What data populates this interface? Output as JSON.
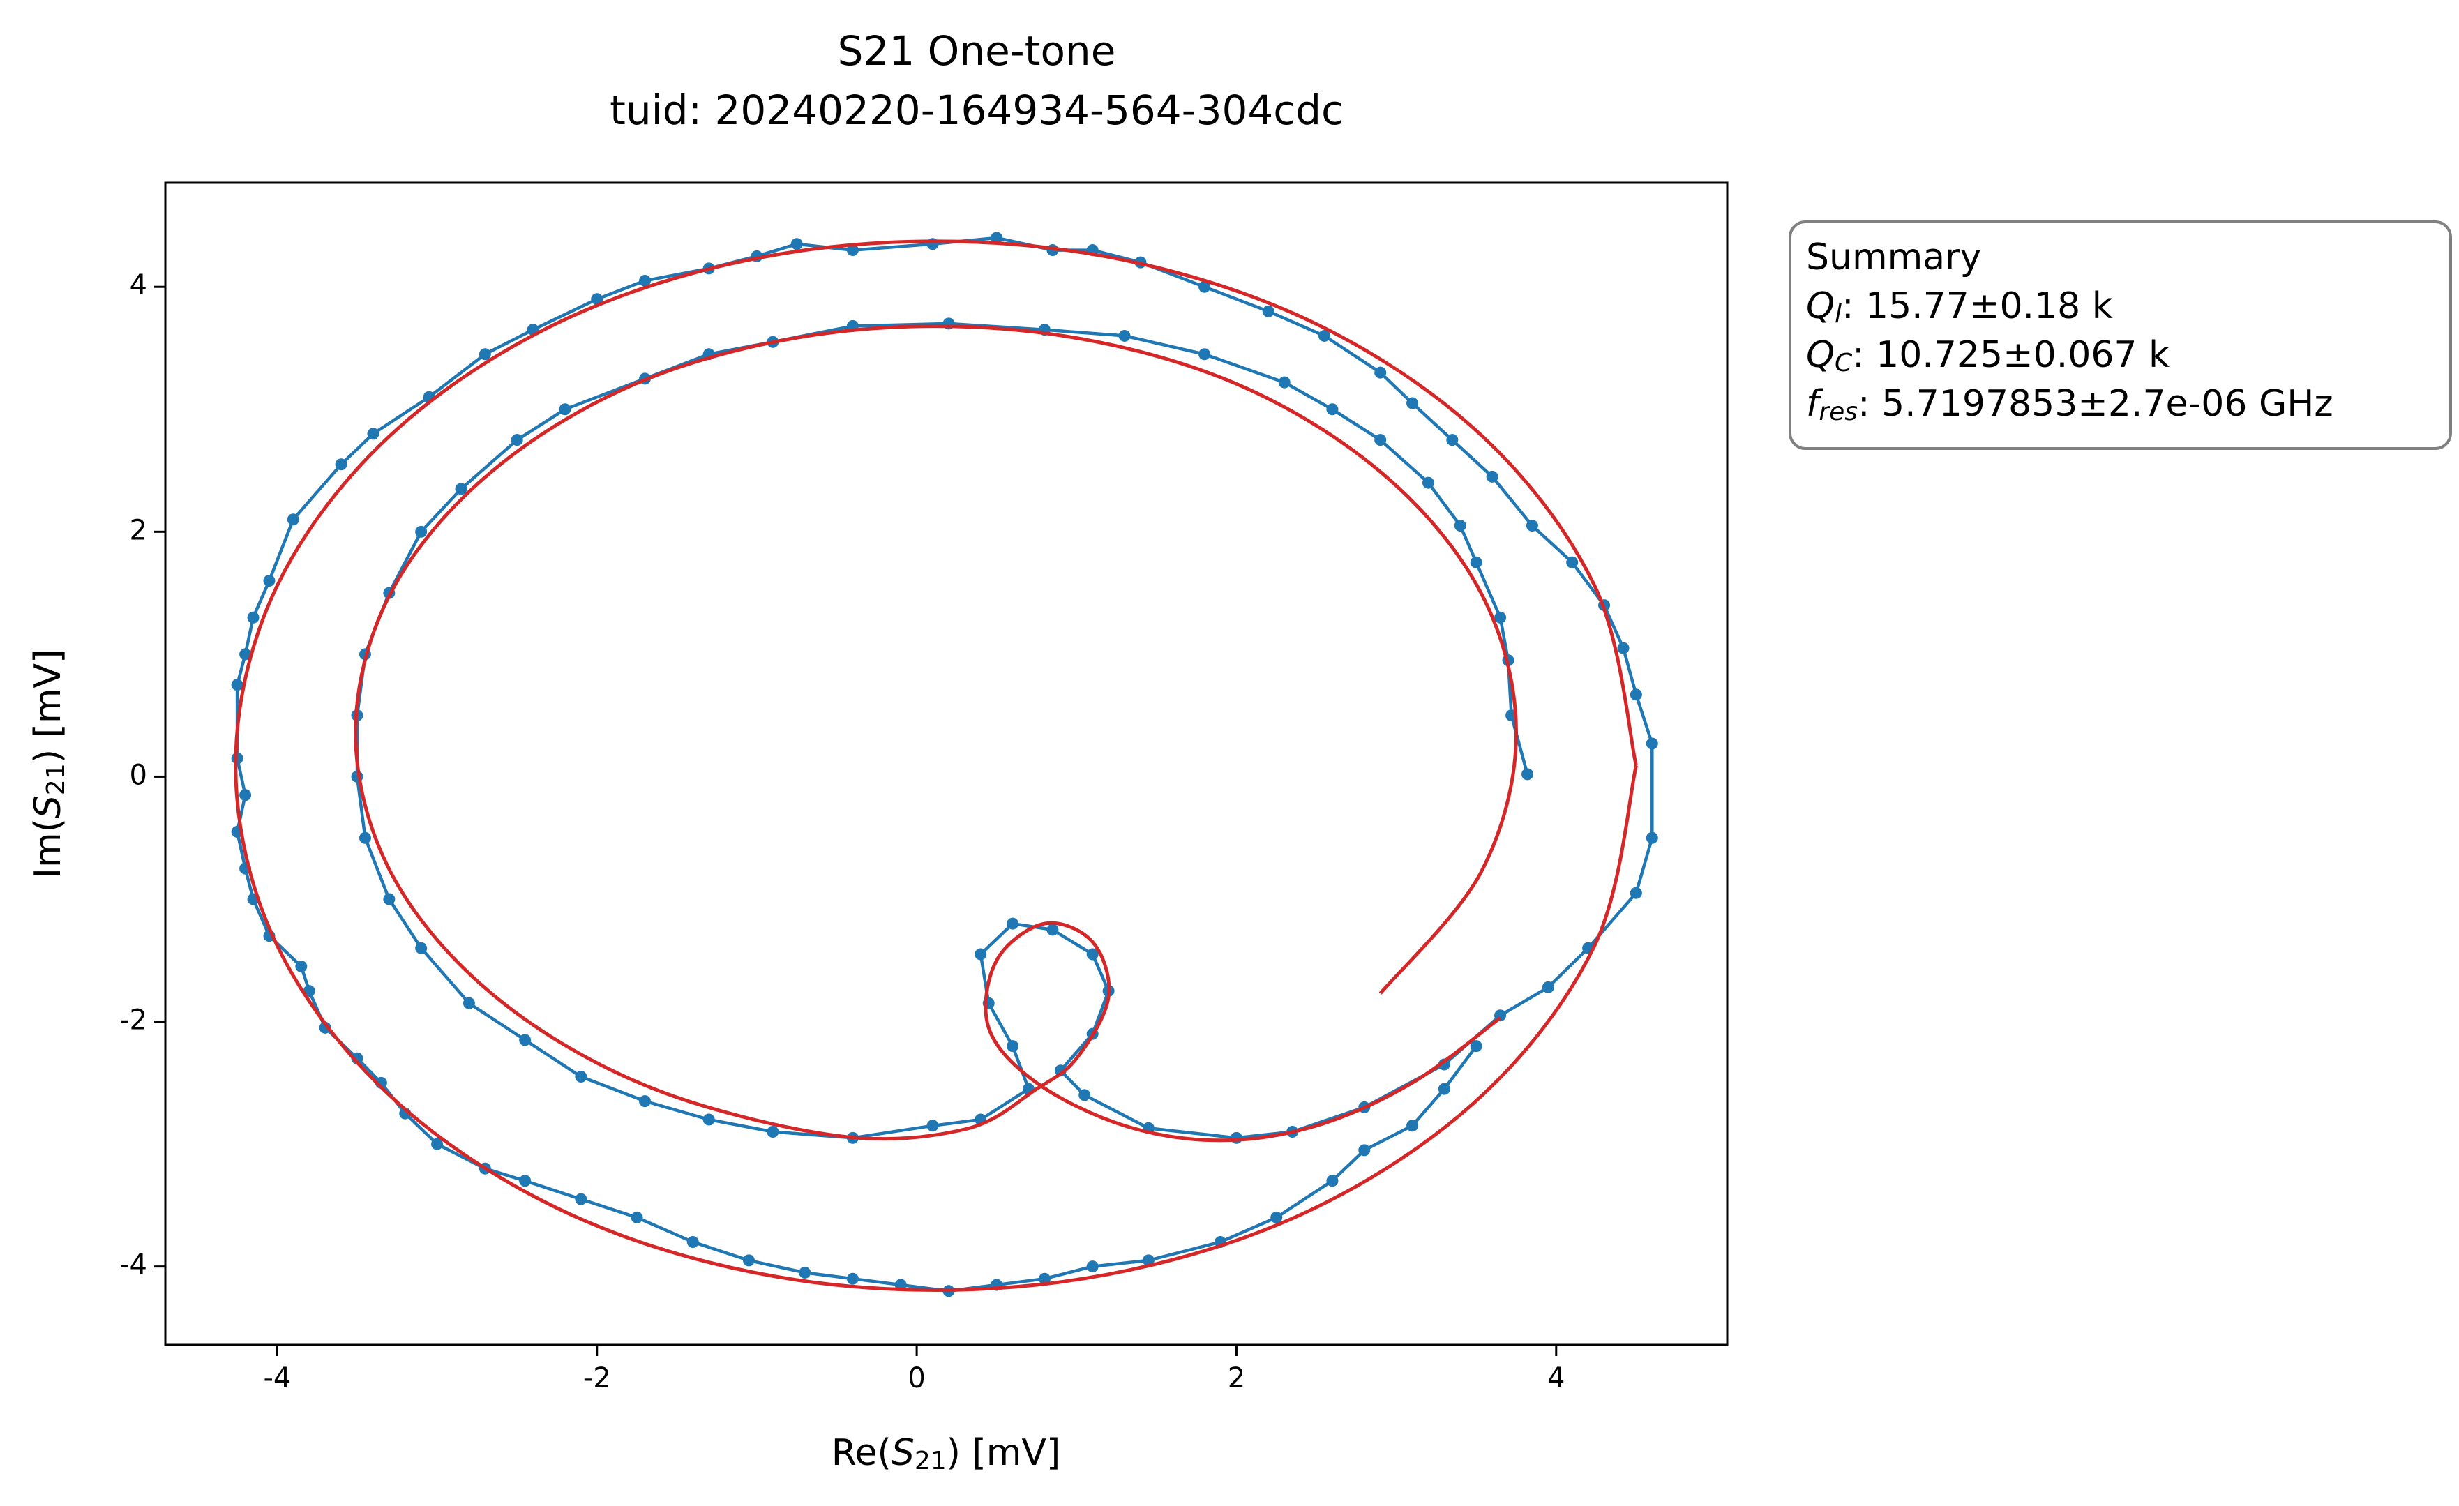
{
  "chart_data": {
    "type": "line",
    "title": "S21 One-tone",
    "subtitle": "tuid: 20240220-164934-564-304cdc",
    "xlabel": {
      "pre": "Re(",
      "sym": "S",
      "sub": "21",
      "post": ") [mV]"
    },
    "ylabel": {
      "pre": "Im(",
      "sym": "S",
      "sub": "21",
      "post": ") [mV]"
    },
    "xlim": [
      -4.7,
      5.07
    ],
    "ylim": [
      -4.64,
      4.85
    ],
    "xticks": [
      -4,
      -2,
      0,
      2,
      4
    ],
    "yticks": [
      -4,
      -2,
      0,
      2,
      4
    ],
    "summary": {
      "title": "Summary",
      "lines": [
        {
          "sym": "Q",
          "sub": "l",
          "text": ": 15.77±0.18 k"
        },
        {
          "sym": "Q",
          "sub": "C",
          "text": ": 10.725±0.067 k"
        },
        {
          "sym": "f",
          "sub": "res",
          "text": ": 5.7197853±2.7e-06 GHz"
        }
      ]
    },
    "series": [
      {
        "color": "#1f77b4",
        "markers": true,
        "x": [
          3.82,
          3.72,
          3.7,
          3.65,
          3.5,
          3.4,
          3.2,
          2.9,
          2.6,
          2.3,
          1.8,
          1.3,
          0.8,
          0.2,
          -0.4,
          -0.9,
          -1.3,
          -1.7,
          -2.2,
          -2.5,
          -2.85,
          -3.1,
          -3.3,
          -3.45,
          -3.5,
          -3.5,
          -3.45,
          -3.3,
          -3.1,
          -2.8,
          -2.45,
          -2.1,
          -1.7,
          -1.3,
          -0.9,
          -0.4,
          0.1,
          0.4,
          0.7,
          0.6,
          0.45,
          0.4,
          0.6,
          0.85,
          1.1,
          1.2,
          1.1,
          0.9,
          1.05,
          1.45,
          2.0,
          2.35,
          2.8,
          3.3,
          3.65,
          3.95,
          4.2,
          4.5,
          4.6,
          4.6,
          4.5,
          4.42,
          4.3,
          4.1,
          3.85,
          3.6,
          3.35,
          3.1,
          2.9,
          2.55,
          2.2,
          1.8,
          1.4,
          1.1,
          0.85,
          0.5,
          0.1,
          -0.4,
          -0.75,
          -1.0,
          -1.3,
          -1.7,
          -2.0,
          -2.4,
          -2.7,
          -3.05,
          -3.4,
          -3.6,
          -3.9,
          -4.05,
          -4.15,
          -4.2,
          -4.25,
          -4.25,
          -4.2,
          -4.25,
          -4.2,
          -4.15,
          -4.05,
          -3.85,
          -3.8,
          -3.7,
          -3.5,
          -3.35,
          -3.2,
          -3.0,
          -2.7,
          -2.45,
          -2.1,
          -1.75,
          -1.4,
          -1.05,
          -0.7,
          -0.4,
          -0.1,
          0.2,
          0.5,
          0.8,
          1.1,
          1.45,
          1.9,
          2.25,
          2.6,
          2.8,
          3.1,
          3.3,
          3.5
        ],
        "y": [
          0.02,
          0.5,
          0.95,
          1.3,
          1.75,
          2.05,
          2.4,
          2.75,
          3.0,
          3.22,
          3.45,
          3.6,
          3.65,
          3.7,
          3.68,
          3.55,
          3.45,
          3.25,
          3.0,
          2.75,
          2.35,
          2.0,
          1.5,
          1.0,
          0.5,
          0.0,
          -0.5,
          -1.0,
          -1.4,
          -1.85,
          -2.15,
          -2.45,
          -2.65,
          -2.8,
          -2.9,
          -2.95,
          -2.85,
          -2.8,
          -2.55,
          -2.2,
          -1.85,
          -1.45,
          -1.2,
          -1.25,
          -1.45,
          -1.75,
          -2.1,
          -2.4,
          -2.6,
          -2.87,
          -2.95,
          -2.9,
          -2.7,
          -2.35,
          -1.95,
          -1.72,
          -1.4,
          -0.95,
          -0.5,
          0.27,
          0.67,
          1.05,
          1.4,
          1.75,
          2.05,
          2.45,
          2.75,
          3.05,
          3.3,
          3.6,
          3.8,
          4.0,
          4.2,
          4.3,
          4.3,
          4.4,
          4.35,
          4.3,
          4.35,
          4.25,
          4.15,
          4.05,
          3.9,
          3.65,
          3.45,
          3.1,
          2.8,
          2.55,
          2.1,
          1.6,
          1.3,
          1.0,
          0.75,
          0.15,
          -0.15,
          -0.45,
          -0.75,
          -1.0,
          -1.3,
          -1.55,
          -1.75,
          -2.05,
          -2.3,
          -2.5,
          -2.75,
          -3.0,
          -3.2,
          -3.3,
          -3.45,
          -3.6,
          -3.8,
          -3.95,
          -4.05,
          -4.1,
          -4.15,
          -4.2,
          -4.15,
          -4.1,
          -4.0,
          -3.95,
          -3.8,
          -3.6,
          -3.3,
          -3.05,
          -2.85,
          -2.55,
          -2.2
        ]
      },
      {
        "color": "#d62728",
        "markers": false,
        "x": [
          4.5,
          4.24,
          3.48,
          2.31,
          0.88,
          -0.64,
          -2.07,
          -3.24,
          -4.0,
          -4.26,
          -4.0,
          -3.24,
          -2.07,
          -0.64,
          0.88,
          2.31,
          3.48,
          4.24,
          4.5,
          null,
          3.65,
          3.1,
          2.5,
          1.9,
          1.3,
          0.75,
          0.45,
          0.5,
          0.8,
          1.1,
          1.2,
          1.0,
          0.75,
          0.3,
          -0.51,
          -1.7,
          -2.66,
          -3.29,
          -3.51,
          -3.29,
          -2.66,
          -1.7,
          -0.51,
          0.75,
          1.94,
          2.9,
          3.53,
          3.75,
          3.53,
          2.9
        ],
        "y": [
          0.09,
          1.56,
          2.85,
          3.81,
          4.31,
          4.31,
          3.81,
          2.85,
          1.56,
          0.09,
          -1.38,
          -2.67,
          -3.63,
          -4.13,
          -4.13,
          -3.63,
          -2.67,
          -1.38,
          0.09,
          null,
          -1.97,
          -2.5,
          -2.85,
          -2.97,
          -2.85,
          -2.5,
          -2.05,
          -1.5,
          -1.2,
          -1.35,
          -1.8,
          -2.3,
          -2.55,
          -2.88,
          -2.93,
          -2.52,
          -1.77,
          -0.78,
          0.36,
          1.5,
          2.49,
          3.24,
          3.63,
          3.63,
          3.24,
          2.49,
          1.5,
          0.36,
          -0.78,
          -1.77
        ]
      }
    ]
  }
}
